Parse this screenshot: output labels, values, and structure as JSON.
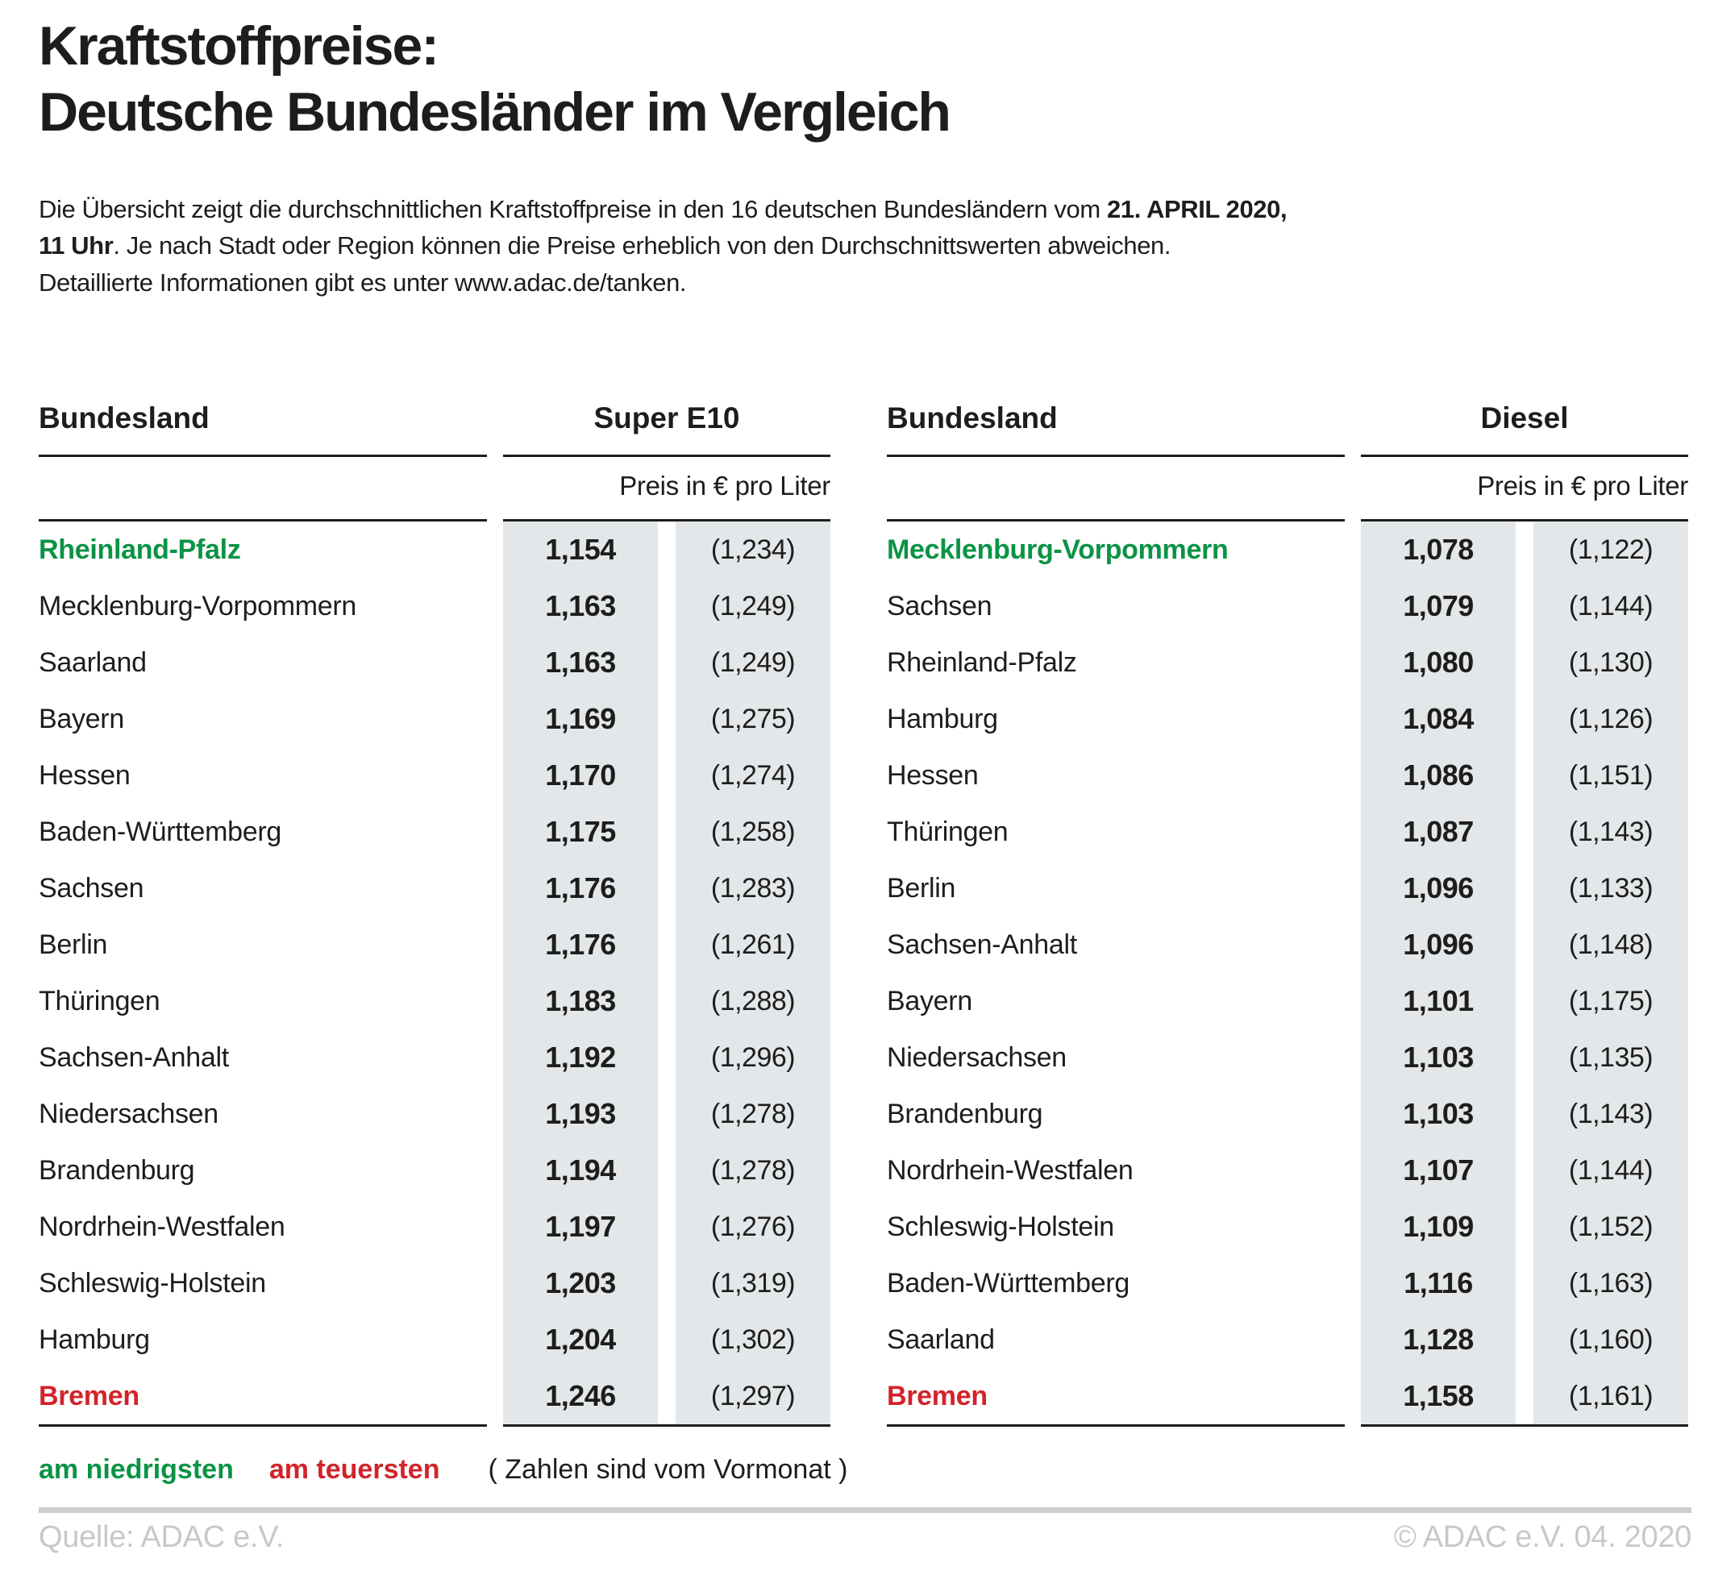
{
  "title": {
    "line1": "Kraftstoffpreise:",
    "line2": "Deutsche Bundesländer im Vergleich"
  },
  "intro": {
    "line1_regular": "Die Übersicht zeigt die durchschnittlichen Kraftstoffpreise in den 16 deutschen Bundesländern vom ",
    "line1_bold": "21. APRIL 2020,",
    "line2_bold": "11 Uhr",
    "line2_regular": ". Je nach Stadt oder Region können die Preise erheblich von den Durchschnittswerten abweichen.",
    "line3": "Detaillierte Informationen gibt es unter www.adac.de/tanken."
  },
  "tables": [
    {
      "header_left": "Bundesland",
      "header_right": "Super E10",
      "unit": "Preis in € pro Liter",
      "rows": [
        {
          "name": "Rheinland-Pfalz",
          "price": "1,154",
          "prev": "(1,234)",
          "highlight": "lowest"
        },
        {
          "name": "Mecklenburg-Vorpommern",
          "price": "1,163",
          "prev": "(1,249)",
          "highlight": null
        },
        {
          "name": "Saarland",
          "price": "1,163",
          "prev": "(1,249)",
          "highlight": null
        },
        {
          "name": "Bayern",
          "price": "1,169",
          "prev": "(1,275)",
          "highlight": null
        },
        {
          "name": "Hessen",
          "price": "1,170",
          "prev": "(1,274)",
          "highlight": null
        },
        {
          "name": "Baden-Württemberg",
          "price": "1,175",
          "prev": "(1,258)",
          "highlight": null
        },
        {
          "name": "Sachsen",
          "price": "1,176",
          "prev": "(1,283)",
          "highlight": null
        },
        {
          "name": "Berlin",
          "price": "1,176",
          "prev": "(1,261)",
          "highlight": null
        },
        {
          "name": "Thüringen",
          "price": "1,183",
          "prev": "(1,288)",
          "highlight": null
        },
        {
          "name": "Sachsen-Anhalt",
          "price": "1,192",
          "prev": "(1,296)",
          "highlight": null
        },
        {
          "name": "Niedersachsen",
          "price": "1,193",
          "prev": "(1,278)",
          "highlight": null
        },
        {
          "name": "Brandenburg",
          "price": "1,194",
          "prev": "(1,278)",
          "highlight": null
        },
        {
          "name": "Nordrhein-Westfalen",
          "price": "1,197",
          "prev": "(1,276)",
          "highlight": null
        },
        {
          "name": "Schleswig-Holstein",
          "price": "1,203",
          "prev": "(1,319)",
          "highlight": null
        },
        {
          "name": "Hamburg",
          "price": "1,204",
          "prev": "(1,302)",
          "highlight": null
        },
        {
          "name": "Bremen",
          "price": "1,246",
          "prev": "(1,297)",
          "highlight": "highest"
        }
      ]
    },
    {
      "header_left": "Bundesland",
      "header_right": "Diesel",
      "unit": "Preis in € pro Liter",
      "rows": [
        {
          "name": "Mecklenburg-Vorpommern",
          "price": "1,078",
          "prev": "(1,122)",
          "highlight": "lowest"
        },
        {
          "name": "Sachsen",
          "price": "1,079",
          "prev": "(1,144)",
          "highlight": null
        },
        {
          "name": "Rheinland-Pfalz",
          "price": "1,080",
          "prev": "(1,130)",
          "highlight": null
        },
        {
          "name": "Hamburg",
          "price": "1,084",
          "prev": "(1,126)",
          "highlight": null
        },
        {
          "name": "Hessen",
          "price": "1,086",
          "prev": "(1,151)",
          "highlight": null
        },
        {
          "name": "Thüringen",
          "price": "1,087",
          "prev": "(1,143)",
          "highlight": null
        },
        {
          "name": "Berlin",
          "price": "1,096",
          "prev": "(1,133)",
          "highlight": null
        },
        {
          "name": "Sachsen-Anhalt",
          "price": "1,096",
          "prev": "(1,148)",
          "highlight": null
        },
        {
          "name": "Bayern",
          "price": "1,101",
          "prev": "(1,175)",
          "highlight": null
        },
        {
          "name": "Niedersachsen",
          "price": "1,103",
          "prev": "(1,135)",
          "highlight": null
        },
        {
          "name": "Brandenburg",
          "price": "1,103",
          "prev": "(1,143)",
          "highlight": null
        },
        {
          "name": "Nordrhein-Westfalen",
          "price": "1,107",
          "prev": "(1,144)",
          "highlight": null
        },
        {
          "name": "Schleswig-Holstein",
          "price": "1,109",
          "prev": "(1,152)",
          "highlight": null
        },
        {
          "name": "Baden-Württemberg",
          "price": "1,116",
          "prev": "(1,163)",
          "highlight": null
        },
        {
          "name": "Saarland",
          "price": "1,128",
          "prev": "(1,160)",
          "highlight": null
        },
        {
          "name": "Bremen",
          "price": "1,158",
          "prev": "(1,161)",
          "highlight": "highest"
        }
      ]
    }
  ],
  "chart_data": [
    {
      "type": "table",
      "title": "Super E10",
      "unit": "Preis in € pro Liter",
      "note": "Zahlen in Klammern sind vom Vormonat",
      "columns": [
        "Bundesland",
        "Preis in € pro Liter",
        "Preis in € pro Liter (Vormonat)"
      ],
      "rows": [
        [
          "Rheinland-Pfalz",
          1.154,
          1.234
        ],
        [
          "Mecklenburg-Vorpommern",
          1.163,
          1.249
        ],
        [
          "Saarland",
          1.163,
          1.249
        ],
        [
          "Bayern",
          1.169,
          1.275
        ],
        [
          "Hessen",
          1.17,
          1.274
        ],
        [
          "Baden-Württemberg",
          1.175,
          1.258
        ],
        [
          "Sachsen",
          1.176,
          1.283
        ],
        [
          "Berlin",
          1.176,
          1.261
        ],
        [
          "Thüringen",
          1.183,
          1.288
        ],
        [
          "Sachsen-Anhalt",
          1.192,
          1.296
        ],
        [
          "Niedersachsen",
          1.193,
          1.278
        ],
        [
          "Brandenburg",
          1.194,
          1.278
        ],
        [
          "Nordrhein-Westfalen",
          1.197,
          1.276
        ],
        [
          "Schleswig-Holstein",
          1.203,
          1.319
        ],
        [
          "Hamburg",
          1.204,
          1.302
        ],
        [
          "Bremen",
          1.246,
          1.297
        ]
      ]
    },
    {
      "type": "table",
      "title": "Diesel",
      "unit": "Preis in € pro Liter",
      "note": "Zahlen in Klammern sind vom Vormonat",
      "columns": [
        "Bundesland",
        "Preis in € pro Liter",
        "Preis in € pro Liter (Vormonat)"
      ],
      "rows": [
        [
          "Mecklenburg-Vorpommern",
          1.078,
          1.122
        ],
        [
          "Sachsen",
          1.079,
          1.144
        ],
        [
          "Rheinland-Pfalz",
          1.08,
          1.13
        ],
        [
          "Hamburg",
          1.084,
          1.126
        ],
        [
          "Hessen",
          1.086,
          1.151
        ],
        [
          "Thüringen",
          1.087,
          1.143
        ],
        [
          "Berlin",
          1.096,
          1.133
        ],
        [
          "Sachsen-Anhalt",
          1.096,
          1.148
        ],
        [
          "Bayern",
          1.101,
          1.175
        ],
        [
          "Niedersachsen",
          1.103,
          1.135
        ],
        [
          "Brandenburg",
          1.103,
          1.143
        ],
        [
          "Nordrhein-Westfalen",
          1.107,
          1.144
        ],
        [
          "Schleswig-Holstein",
          1.109,
          1.152
        ],
        [
          "Baden-Württemberg",
          1.116,
          1.163
        ],
        [
          "Saarland",
          1.128,
          1.16
        ],
        [
          "Bremen",
          1.158,
          1.161
        ]
      ]
    }
  ],
  "legend": {
    "lowest": "am niedrigsten",
    "highest": "am teuersten",
    "note": "( Zahlen sind vom Vormonat )"
  },
  "footer": {
    "source": "Quelle: ADAC e.V.",
    "copyright": "© ADAC e.V. 04. 2020"
  },
  "colors": {
    "lowest_green": "#0b9345",
    "highest_red": "#d2232a",
    "text": "#1d1d1b",
    "value_column_bg": "#e4e7ea",
    "footer_gray": "#c8c8c8",
    "divider_gray": "#cdcdcd"
  }
}
